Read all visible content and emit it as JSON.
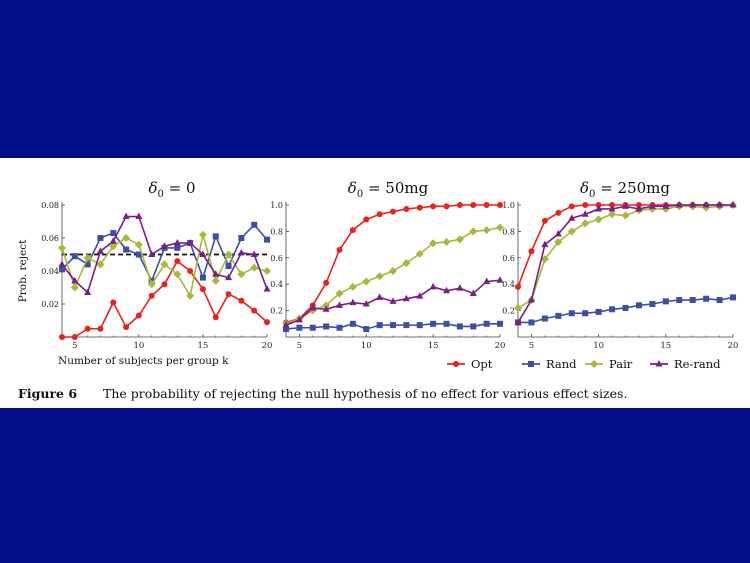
{
  "caption": {
    "label": "Figure 6",
    "text": "The probability of rejecting the null hypothesis of no effect for various effect sizes."
  },
  "colors": {
    "Opt": "#e8231e",
    "Rand": "#3a4fa5",
    "Pair": "#a7b83a",
    "Re-rand": "#7a1f86",
    "background": "#000f88",
    "reference": "#111111"
  },
  "chart_data": [
    {
      "type": "line",
      "title_symbol": "δ",
      "title_sub": "0",
      "title_rest": " = 0",
      "xlabel": "Number of subjects per group k",
      "ylabel": "Prob. reject",
      "xlim": [
        4,
        20
      ],
      "ylim": [
        0,
        0.08
      ],
      "xticks": [
        5,
        10,
        15,
        20
      ],
      "yticks": [
        0.02,
        0.04,
        0.06,
        0.08
      ],
      "ytick_labels": [
        "0.02",
        "0.04",
        "0.06",
        "0.08"
      ],
      "reference_line": 0.05,
      "x": [
        4,
        5,
        6,
        7,
        8,
        9,
        10,
        11,
        12,
        13,
        14,
        15,
        16,
        17,
        18,
        19,
        20
      ],
      "series": [
        {
          "name": "Opt",
          "values": [
            0.0,
            0.0,
            0.005,
            0.005,
            0.021,
            0.006,
            0.013,
            0.025,
            0.032,
            0.046,
            0.04,
            0.029,
            0.012,
            0.026,
            0.022,
            0.016,
            0.009
          ]
        },
        {
          "name": "Rand",
          "values": [
            0.041,
            0.049,
            0.044,
            0.06,
            0.063,
            0.053,
            0.05,
            0.034,
            0.054,
            0.054,
            0.057,
            0.036,
            0.061,
            0.043,
            0.06,
            0.068,
            0.059
          ]
        },
        {
          "name": "Pair",
          "values": [
            0.054,
            0.03,
            0.048,
            0.044,
            0.055,
            0.06,
            0.056,
            0.032,
            0.044,
            0.038,
            0.025,
            0.062,
            0.034,
            0.05,
            0.038,
            0.042,
            0.04
          ]
        },
        {
          "name": "Re-rand",
          "values": [
            0.044,
            0.034,
            0.027,
            0.052,
            0.058,
            0.073,
            0.073,
            0.05,
            0.055,
            0.057,
            0.057,
            0.05,
            0.038,
            0.036,
            0.051,
            0.05,
            0.029
          ]
        }
      ]
    },
    {
      "type": "line",
      "title_symbol": "δ",
      "title_sub": "0",
      "title_rest": " = 50mg",
      "xlim": [
        4,
        20
      ],
      "ylim": [
        0,
        1.0
      ],
      "xticks": [
        5,
        10,
        15,
        20
      ],
      "yticks": [
        0.2,
        0.4,
        0.6,
        0.8,
        1.0
      ],
      "ytick_labels": [
        "0.2",
        "0.4",
        "0.6",
        "0.8",
        "1.0"
      ],
      "x": [
        4,
        5,
        6,
        7,
        8,
        9,
        10,
        11,
        12,
        13,
        14,
        15,
        16,
        17,
        18,
        19,
        20
      ],
      "series": [
        {
          "name": "Opt",
          "values": [
            0.11,
            0.14,
            0.24,
            0.41,
            0.66,
            0.81,
            0.89,
            0.93,
            0.95,
            0.97,
            0.98,
            0.99,
            0.99,
            1.0,
            1.0,
            1.0,
            1.0
          ]
        },
        {
          "name": "Rand",
          "values": [
            0.06,
            0.07,
            0.07,
            0.08,
            0.07,
            0.1,
            0.06,
            0.09,
            0.09,
            0.09,
            0.09,
            0.1,
            0.1,
            0.08,
            0.08,
            0.1,
            0.1
          ]
        },
        {
          "name": "Pair",
          "values": [
            0.1,
            0.14,
            0.2,
            0.24,
            0.33,
            0.38,
            0.42,
            0.46,
            0.5,
            0.56,
            0.63,
            0.71,
            0.72,
            0.74,
            0.8,
            0.81,
            0.83
          ]
        },
        {
          "name": "Re-rand",
          "values": [
            0.09,
            0.13,
            0.22,
            0.21,
            0.24,
            0.26,
            0.25,
            0.3,
            0.27,
            0.29,
            0.31,
            0.38,
            0.35,
            0.37,
            0.33,
            0.42,
            0.43
          ]
        }
      ]
    },
    {
      "type": "line",
      "title_symbol": "δ",
      "title_sub": "0",
      "title_rest": " = 250mg",
      "xlim": [
        4,
        20
      ],
      "ylim": [
        0,
        1.0
      ],
      "xticks": [
        5,
        10,
        15,
        20
      ],
      "yticks": [
        0.2,
        0.4,
        0.6,
        0.8,
        1.0
      ],
      "ytick_labels": [
        "0.2",
        "0.4",
        "0.6",
        "0.8",
        "1.0"
      ],
      "x": [
        4,
        5,
        6,
        7,
        8,
        9,
        10,
        11,
        12,
        13,
        14,
        15,
        16,
        17,
        18,
        19,
        20
      ],
      "series": [
        {
          "name": "Opt",
          "values": [
            0.38,
            0.65,
            0.88,
            0.94,
            0.99,
            1.0,
            1.0,
            1.0,
            1.0,
            1.0,
            1.0,
            1.0,
            1.0,
            1.0,
            1.0,
            1.0,
            1.0
          ]
        },
        {
          "name": "Rand",
          "values": [
            0.11,
            0.11,
            0.14,
            0.16,
            0.18,
            0.18,
            0.19,
            0.21,
            0.22,
            0.24,
            0.25,
            0.27,
            0.28,
            0.28,
            0.29,
            0.28,
            0.3
          ]
        },
        {
          "name": "Pair",
          "values": [
            0.22,
            0.28,
            0.59,
            0.72,
            0.8,
            0.86,
            0.89,
            0.93,
            0.92,
            0.96,
            0.97,
            0.97,
            0.99,
            0.99,
            0.98,
            0.99,
            1.0
          ]
        },
        {
          "name": "Re-rand",
          "values": [
            0.11,
            0.28,
            0.7,
            0.78,
            0.9,
            0.93,
            0.97,
            0.97,
            0.99,
            0.97,
            0.99,
            0.99,
            1.0,
            1.0,
            1.0,
            1.0,
            1.0
          ]
        }
      ]
    }
  ],
  "legend": {
    "entries": [
      "Opt",
      "Rand",
      "Pair",
      "Re-rand"
    ],
    "placement": "bottom-right"
  }
}
